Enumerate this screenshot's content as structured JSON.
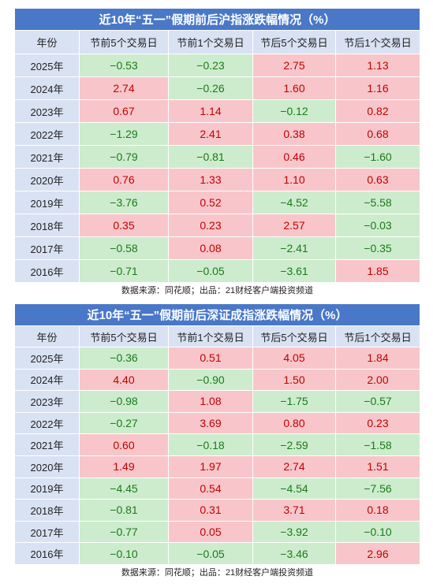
{
  "tables": [
    {
      "title": "近10年“五一”假期前后沪指涨跌幅情况（%）",
      "columns": [
        "年份",
        "节前5个交易日",
        "节前1个交易日",
        "节后5个交易日",
        "节后1个交易日"
      ],
      "rows": [
        [
          "2025年",
          "−0.53",
          "−0.23",
          "2.75",
          "1.13"
        ],
        [
          "2024年",
          "2.74",
          "−0.26",
          "1.60",
          "1.16"
        ],
        [
          "2023年",
          "0.67",
          "1.14",
          "−0.12",
          "0.82"
        ],
        [
          "2022年",
          "−1.29",
          "2.41",
          "0.38",
          "0.68"
        ],
        [
          "2021年",
          "−0.79",
          "−0.81",
          "0.46",
          "−1.60"
        ],
        [
          "2020年",
          "0.76",
          "1.33",
          "1.10",
          "0.63"
        ],
        [
          "2019年",
          "−3.76",
          "0.52",
          "−4.52",
          "−5.58"
        ],
        [
          "2018年",
          "0.35",
          "0.23",
          "2.57",
          "−0.03"
        ],
        [
          "2017年",
          "−0.58",
          "0.08",
          "−2.41",
          "−0.35"
        ],
        [
          "2016年",
          "−0.71",
          "−0.05",
          "−3.61",
          "1.85"
        ]
      ],
      "source": "数据来源：同花顺；出品：21财经客户端投资频道"
    },
    {
      "title": "近10年“五一”假期前后深证成指涨跌幅情况（%）",
      "columns": [
        "年份",
        "节前5个交易日",
        "节前1个交易日",
        "节后5个交易日",
        "节后1个交易日"
      ],
      "rows": [
        [
          "2025年",
          "−0.36",
          "0.51",
          "4.05",
          "1.84"
        ],
        [
          "2024年",
          "4.40",
          "−0.90",
          "1.50",
          "2.00"
        ],
        [
          "2023年",
          "−0.98",
          "1.08",
          "−1.75",
          "−0.57"
        ],
        [
          "2022年",
          "−0.27",
          "3.69",
          "0.80",
          "0.23"
        ],
        [
          "2021年",
          "0.60",
          "−0.18",
          "−2.59",
          "−1.58"
        ],
        [
          "2020年",
          "1.49",
          "1.97",
          "2.74",
          "1.51"
        ],
        [
          "2019年",
          "−4.45",
          "0.54",
          "−4.54",
          "−7.56"
        ],
        [
          "2018年",
          "−0.81",
          "0.31",
          "3.71",
          "0.18"
        ],
        [
          "2017年",
          "−0.77",
          "0.05",
          "−3.92",
          "−0.10"
        ],
        [
          "2016年",
          "−0.10",
          "−0.05",
          "−3.46",
          "2.96"
        ]
      ],
      "source": "数据来源：同花顺；出品：21财经客户端投资频道"
    }
  ]
}
